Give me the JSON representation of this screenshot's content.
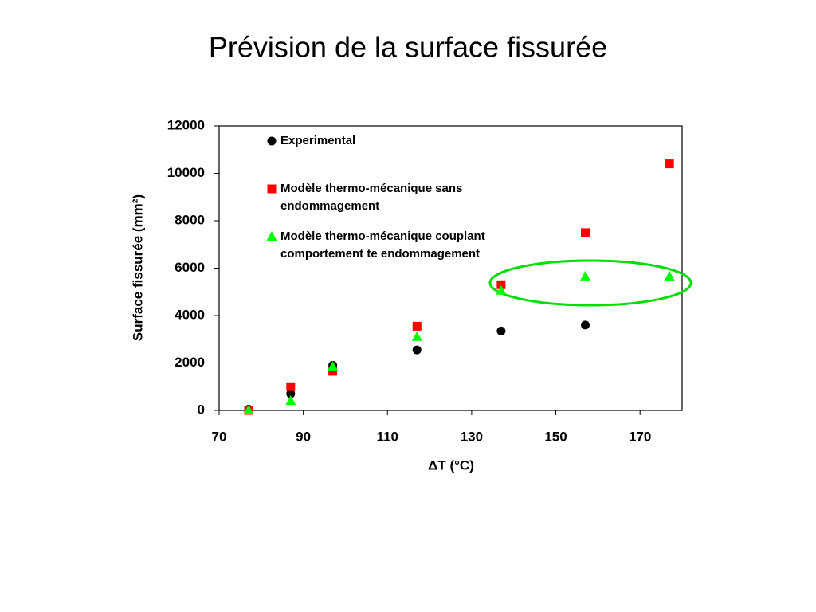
{
  "chart_data": {
    "type": "scatter",
    "title": "Prévision de la surface fissurée",
    "x_label": "ΔT (°C)",
    "y_label": "Surface fissurée (mm²)",
    "x": [
      77,
      87,
      97,
      117,
      137,
      157,
      177
    ],
    "series": [
      {
        "name": "Experimental",
        "color": "#000000",
        "marker": "circle",
        "values": [
          50,
          700,
          1900,
          2550,
          3350,
          3600,
          null
        ]
      },
      {
        "name": "Modèle thermo-mécanique sans endommagement",
        "color": "#ff0000",
        "marker": "square",
        "values": [
          0,
          1000,
          1650,
          3550,
          5300,
          7500,
          10400
        ]
      },
      {
        "name": "Modèle thermo-mécanique couplant comportement te endommagement",
        "color": "#00ff00",
        "marker": "triangle",
        "values": [
          0,
          400,
          1850,
          3100,
          5050,
          5650,
          5650
        ]
      }
    ],
    "xlim": [
      70,
      180
    ],
    "ylim": [
      0,
      12000
    ],
    "xticks": [
      70,
      90,
      110,
      130,
      150,
      170
    ],
    "yticks": [
      0,
      2000,
      4000,
      6000,
      8000,
      10000,
      12000
    ]
  }
}
